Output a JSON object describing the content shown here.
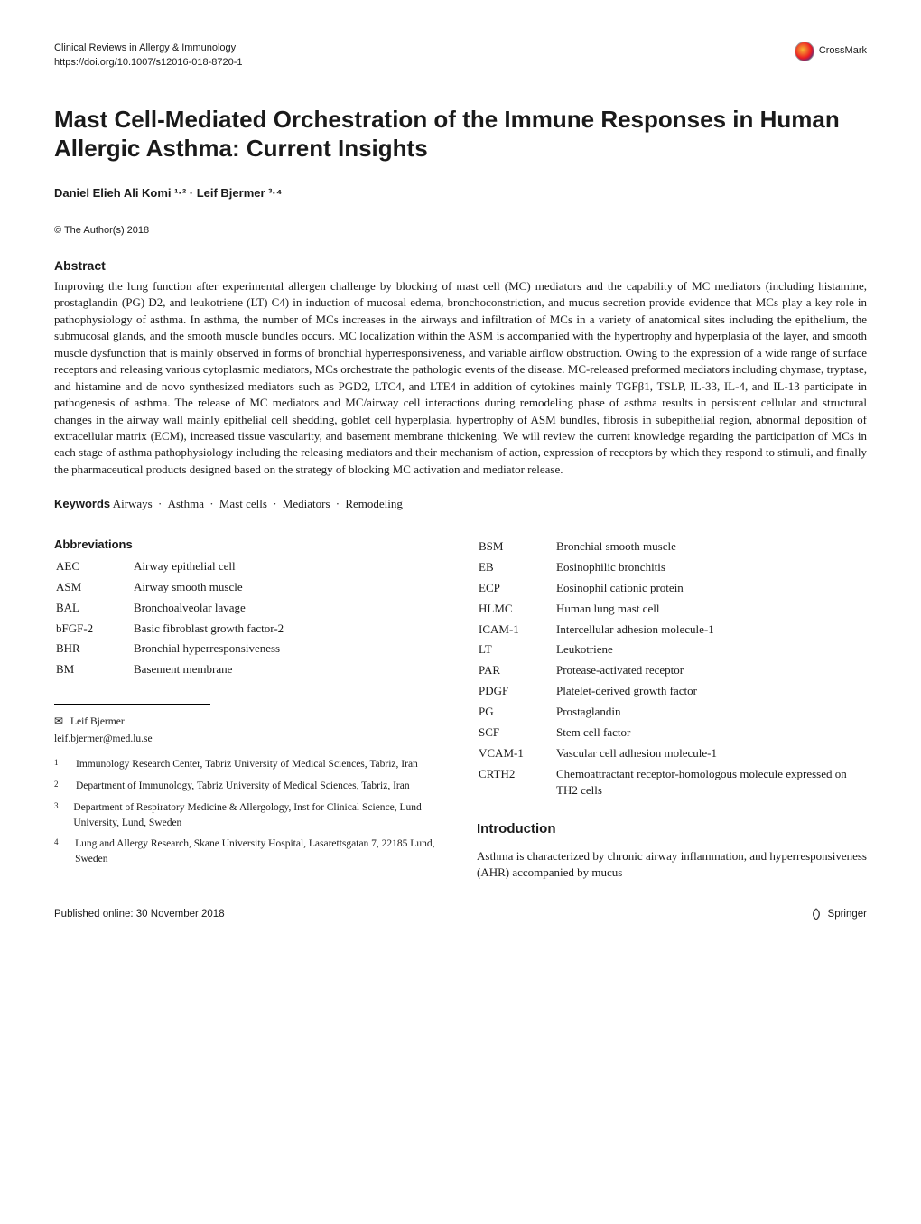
{
  "header": {
    "journal": "Clinical Reviews in Allergy & Immunology",
    "doi": "https://doi.org/10.1007/s12016-018-8720-1",
    "crossmark": "CrossMark"
  },
  "title": "Mast Cell-Mediated Orchestration of the Immune Responses in Human Allergic Asthma: Current Insights",
  "authors_html": "Daniel Elieh Ali Komi ¹·² · Leif Bjermer ³·⁴",
  "copyright": "© The Author(s) 2018",
  "abstract": {
    "heading": "Abstract",
    "body": "Improving the lung function after experimental allergen challenge by blocking of mast cell (MC) mediators and the capability of MC mediators (including histamine, prostaglandin (PG) D2, and leukotriene (LT) C4) in induction of mucosal edema, bronchoconstriction, and mucus secretion provide evidence that MCs play a key role in pathophysiology of asthma. In asthma, the number of MCs increases in the airways and infiltration of MCs in a variety of anatomical sites including the epithelium, the submucosal glands, and the smooth muscle bundles occurs. MC localization within the ASM is accompanied with the hypertrophy and hyperplasia of the layer, and smooth muscle dysfunction that is mainly observed in forms of bronchial hyperresponsiveness, and variable airflow obstruction. Owing to the expression of a wide range of surface receptors and releasing various cytoplasmic mediators, MCs orchestrate the pathologic events of the disease. MC-released preformed mediators including chymase, tryptase, and histamine and de novo synthesized mediators such as PGD2, LTC4, and LTE4 in addition of cytokines mainly TGFβ1, TSLP, IL-33, IL-4, and IL-13 participate in pathogenesis of asthma. The release of MC mediators and MC/airway cell interactions during remodeling phase of asthma results in persistent cellular and structural changes in the airway wall mainly epithelial cell shedding, goblet cell hyperplasia, hypertrophy of ASM bundles, fibrosis in subepithelial region, abnormal deposition of extracellular matrix (ECM), increased tissue vascularity, and basement membrane thickening. We will review the current knowledge regarding the participation of MCs in each stage of asthma pathophysiology including the releasing mediators and their mechanism of action, expression of receptors by which they respond to stimuli, and finally the pharmaceutical products designed based on the strategy of blocking MC activation and mediator release."
  },
  "keywords": {
    "heading": "Keywords",
    "items": [
      "Airways",
      "Asthma",
      "Mast cells",
      "Mediators",
      "Remodeling"
    ]
  },
  "abbreviations": {
    "heading": "Abbreviations",
    "rows": [
      {
        "abbr": "AEC",
        "def": "Airway epithelial cell"
      },
      {
        "abbr": "ASM",
        "def": "Airway smooth muscle"
      },
      {
        "abbr": "BAL",
        "def": "Bronchoalveolar lavage"
      },
      {
        "abbr": "bFGF-2",
        "def": "Basic fibroblast growth factor-2"
      },
      {
        "abbr": "BHR",
        "def": "Bronchial hyperresponsiveness"
      },
      {
        "abbr": "BM",
        "def": "Basement membrane"
      },
      {
        "abbr": "BSM",
        "def": "Bronchial smooth muscle"
      },
      {
        "abbr": "EB",
        "def": "Eosinophilic bronchitis"
      },
      {
        "abbr": "ECP",
        "def": "Eosinophil cationic protein"
      },
      {
        "abbr": "HLMC",
        "def": "Human lung mast cell"
      },
      {
        "abbr": "ICAM-1",
        "def": "Intercellular adhesion molecule-1"
      },
      {
        "abbr": "LT",
        "def": "Leukotriene"
      },
      {
        "abbr": "PAR",
        "def": "Protease-activated receptor"
      },
      {
        "abbr": "PDGF",
        "def": "Platelet-derived growth factor"
      },
      {
        "abbr": "PG",
        "def": "Prostaglandin"
      },
      {
        "abbr": "SCF",
        "def": "Stem cell factor"
      },
      {
        "abbr": "VCAM-1",
        "def": "Vascular cell adhesion molecule-1"
      },
      {
        "abbr": "CRTH2",
        "def": "Chemoattractant receptor-homologous molecule expressed on TH2 cells"
      }
    ]
  },
  "corresponding": {
    "name": "Leif Bjermer",
    "email": "leif.bjermer@med.lu.se"
  },
  "affiliations": [
    {
      "num": "1",
      "text": "Immunology Research Center, Tabriz University of Medical Sciences, Tabriz, Iran"
    },
    {
      "num": "2",
      "text": "Department of Immunology, Tabriz University of Medical Sciences, Tabriz, Iran"
    },
    {
      "num": "3",
      "text": "Department of Respiratory Medicine & Allergology, Inst for Clinical Science, Lund University, Lund, Sweden"
    },
    {
      "num": "4",
      "text": "Lung and Allergy Research, Skane University Hospital, Lasarettsgatan 7, 22185 Lund, Sweden"
    }
  ],
  "introduction": {
    "heading": "Introduction",
    "body": "Asthma is characterized by chronic airway inflammation, and hyperresponsiveness (AHR) accompanied by mucus"
  },
  "footer": {
    "published": "Published online: 30 November 2018",
    "publisher": "Springer"
  },
  "style": {
    "body_bg": "#ffffff",
    "body_color": "#1a1a1a",
    "title_fontsize": 26,
    "body_fontsize": 13,
    "small_fontsize": 11,
    "heading_font": "Arial",
    "body_font": "Georgia"
  }
}
